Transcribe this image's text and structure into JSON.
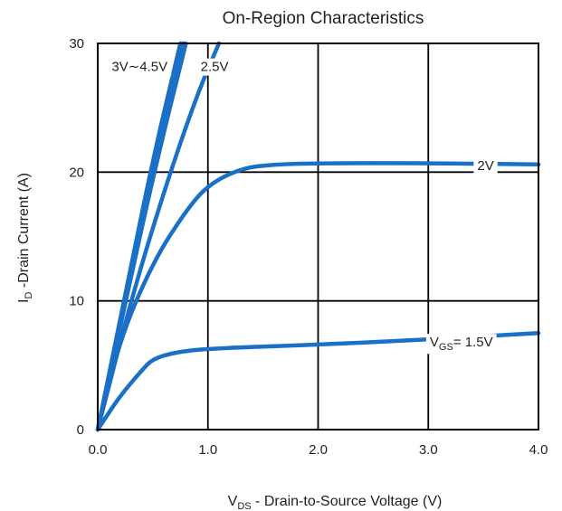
{
  "chart_data": {
    "type": "line",
    "title": "On-Region Characteristics",
    "xlabel": {
      "main": "V",
      "sub": "DS",
      "rest": " - Drain-to-Source Voltage (V)"
    },
    "ylabel": {
      "main": "I",
      "sub": "D",
      "rest": " -Drain Current (A)"
    },
    "xlim": [
      0,
      4.0
    ],
    "ylim": [
      0,
      30
    ],
    "x_ticks": [
      {
        "value": 0.0,
        "label": "0.0"
      },
      {
        "value": 1.0,
        "label": "1.0"
      },
      {
        "value": 2.0,
        "label": "2.0"
      },
      {
        "value": 3.0,
        "label": "3.0"
      },
      {
        "value": 4.0,
        "label": "4.0"
      }
    ],
    "y_ticks": [
      {
        "value": 0,
        "label": "0"
      },
      {
        "value": 10,
        "label": "10"
      },
      {
        "value": 20,
        "label": "20"
      },
      {
        "value": 30,
        "label": "30"
      }
    ],
    "grid": true,
    "line_color": "#1a6fc7",
    "series": [
      {
        "x": [
          0,
          0.25,
          0.5,
          0.75
        ],
        "y": [
          0,
          10.5,
          21,
          30
        ]
      },
      {
        "x": [
          0,
          0.25,
          0.5,
          0.76
        ],
        "y": [
          0,
          10.2,
          20.4,
          30
        ]
      },
      {
        "x": [
          0,
          0.25,
          0.5,
          0.78
        ],
        "y": [
          0,
          10.0,
          20.0,
          30
        ]
      },
      {
        "x": [
          0,
          0.25,
          0.5,
          0.8
        ],
        "y": [
          0,
          9.8,
          19.6,
          30
        ]
      },
      {
        "x": [
          0,
          0.3,
          0.6,
          0.9,
          1.1
        ],
        "y": [
          0,
          10.0,
          18.5,
          26.0,
          30
        ]
      },
      {
        "x": [
          0,
          0.2,
          0.5,
          0.8,
          1.0,
          1.3,
          1.6,
          2.0,
          3.0,
          4.0
        ],
        "y": [
          0,
          7.0,
          13.0,
          17.0,
          19.0,
          20.3,
          20.6,
          20.7,
          20.7,
          20.6
        ]
      },
      {
        "x": [
          0,
          0.2,
          0.4,
          0.5,
          0.7,
          1.0,
          2.0,
          3.0,
          4.0
        ],
        "y": [
          0,
          2.6,
          4.6,
          5.5,
          6.0,
          6.3,
          6.6,
          7.0,
          7.5
        ]
      }
    ],
    "annotations": [
      {
        "text": "3V∼4.5V",
        "x": 0.38,
        "y": 28.2
      },
      {
        "text": "2.5V",
        "x": 1.06,
        "y": 28.2
      },
      {
        "text": "2V",
        "x": 3.52,
        "y": 20.5
      },
      {
        "main": "V",
        "sub": "GS",
        "rest": "= 1.5V",
        "x": 3.3,
        "y": 6.8
      }
    ]
  }
}
